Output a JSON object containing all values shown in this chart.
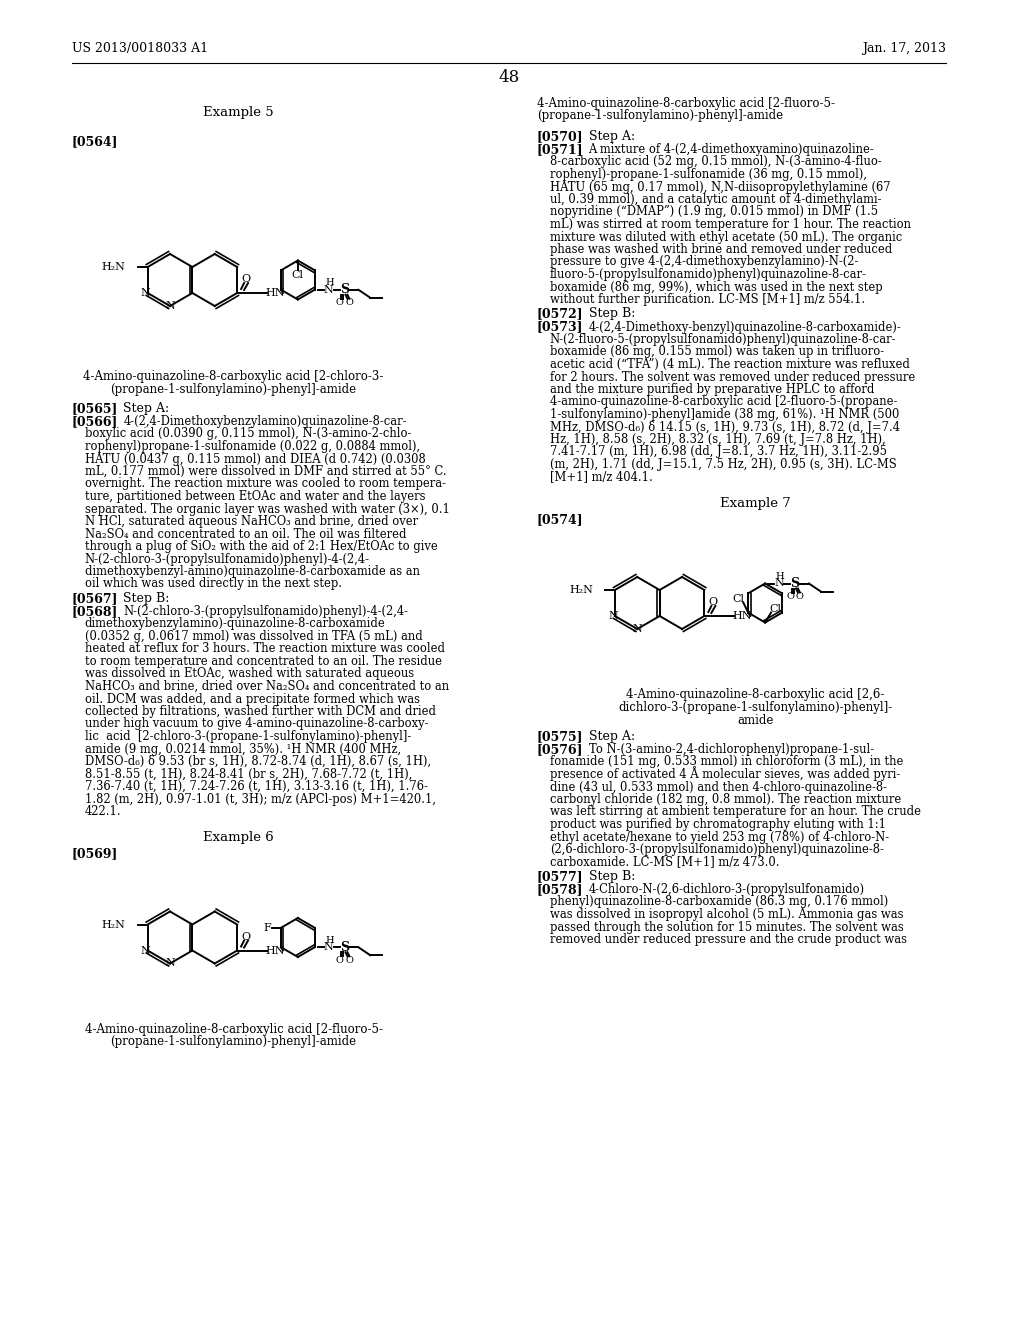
{
  "background_color": "#ffffff",
  "page_header_left": "US 2013/0018033 A1",
  "page_header_right": "Jan. 17, 2013",
  "page_number": "48",
  "example5_title": "Example 5",
  "example6_title": "Example 6",
  "example7_title": "Example 7",
  "label0564": "[0564]",
  "label0565": "[0565]",
  "label0566": "[0566]",
  "label0567": "[0567]",
  "label0568": "[0568]",
  "label0569": "[0569]",
  "label0570": "[0570]",
  "label0571": "[0571]",
  "label0572": "[0572]",
  "label0573": "[0573]",
  "label0574": "[0574]",
  "label0575": "[0575]",
  "label0576": "[0576]",
  "label0577": "[0577]",
  "label0578": "[0578]",
  "compound1_cap1": "4-Amino-quinazoline-8-carboxylic acid [2-chloro-3-",
  "compound1_cap2": "(propane-1-sulfonylamino)-phenyl]-amide",
  "compound2_cap1": "4-Amino-quinazoline-8-carboxylic acid [2-fluoro-5-",
  "compound2_cap2": "(propane-1-sulfonylamino)-phenyl]-amide",
  "compound3_cap1": "4-Amino-quinazoline-8-carboxylic acid [2,6-",
  "compound3_cap2": "dichloro-3-(propane-1-sulfonylamino)-phenyl]-",
  "compound3_cap3": "amide",
  "right_header1": "4-Amino-quinazoline-8-carboxylic acid [2-fluoro-5-",
  "right_header2": "(propane-1-sulfonylamino)-phenyl]-amide",
  "step_a": "Step A:",
  "step_b": "Step B:"
}
